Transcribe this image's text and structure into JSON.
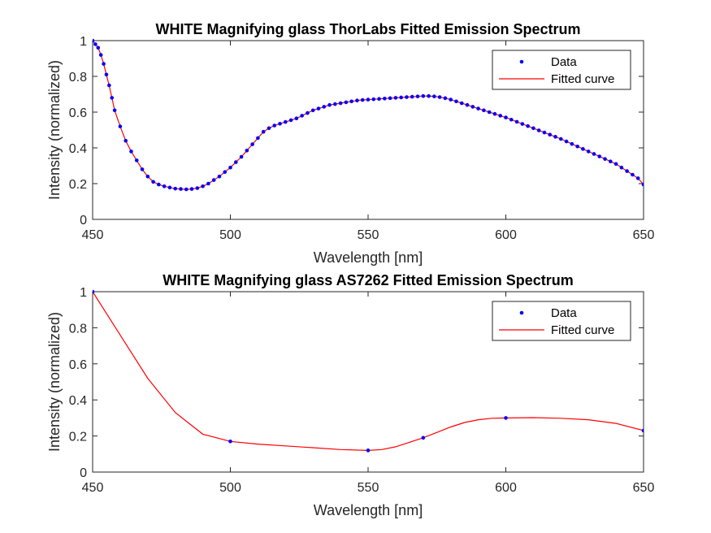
{
  "chart_data": [
    {
      "type": "scatter",
      "title": "WHITE Magnifying glass ThorLabs Fitted Emission Spectrum",
      "xlabel": "Wavelength [nm]",
      "ylabel": "Intensity (normalized)",
      "xlim": [
        450,
        650
      ],
      "ylim": [
        0,
        1
      ],
      "xticks": [
        450,
        500,
        550,
        600,
        650
      ],
      "yticks": [
        0,
        0.2,
        0.4,
        0.6,
        0.8,
        1
      ],
      "grid": false,
      "legend_position": "top-right",
      "series": [
        {
          "name": "Data",
          "style": "markers",
          "color": "#0000FF",
          "x": [
            450,
            451,
            452,
            453,
            454,
            455,
            456,
            457,
            458,
            460,
            462,
            464,
            466,
            468,
            470,
            472,
            474,
            476,
            478,
            480,
            482,
            484,
            486,
            488,
            490,
            492,
            494,
            496,
            498,
            500,
            502,
            504,
            506,
            508,
            510,
            512,
            514,
            516,
            518,
            520,
            522,
            524,
            526,
            528,
            530,
            532,
            534,
            536,
            538,
            540,
            542,
            544,
            546,
            548,
            550,
            552,
            554,
            556,
            558,
            560,
            562,
            564,
            566,
            568,
            570,
            572,
            574,
            576,
            578,
            580,
            582,
            584,
            586,
            588,
            590,
            592,
            594,
            596,
            598,
            600,
            602,
            604,
            606,
            608,
            610,
            612,
            614,
            616,
            618,
            620,
            622,
            624,
            626,
            628,
            630,
            632,
            634,
            636,
            638,
            640,
            642,
            644,
            646,
            648,
            650
          ],
          "y": [
            1.0,
            0.98,
            0.96,
            0.92,
            0.87,
            0.81,
            0.75,
            0.68,
            0.61,
            0.52,
            0.44,
            0.38,
            0.33,
            0.28,
            0.24,
            0.21,
            0.195,
            0.185,
            0.178,
            0.172,
            0.17,
            0.168,
            0.17,
            0.175,
            0.185,
            0.2,
            0.22,
            0.24,
            0.265,
            0.29,
            0.32,
            0.35,
            0.385,
            0.42,
            0.455,
            0.49,
            0.51,
            0.525,
            0.535,
            0.545,
            0.555,
            0.565,
            0.58,
            0.595,
            0.61,
            0.62,
            0.63,
            0.64,
            0.645,
            0.65,
            0.655,
            0.66,
            0.665,
            0.668,
            0.67,
            0.672,
            0.674,
            0.676,
            0.678,
            0.68,
            0.682,
            0.684,
            0.686,
            0.688,
            0.69,
            0.69,
            0.688,
            0.684,
            0.678,
            0.67,
            0.66,
            0.65,
            0.64,
            0.63,
            0.62,
            0.61,
            0.6,
            0.59,
            0.58,
            0.57,
            0.558,
            0.546,
            0.534,
            0.522,
            0.51,
            0.498,
            0.486,
            0.474,
            0.462,
            0.45,
            0.436,
            0.422,
            0.408,
            0.394,
            0.38,
            0.366,
            0.352,
            0.338,
            0.324,
            0.31,
            0.29,
            0.27,
            0.25,
            0.23,
            0.195
          ]
        },
        {
          "name": "Fitted curve",
          "style": "line",
          "color": "#FF0000",
          "x": [
            450,
            451,
            452,
            453,
            454,
            455,
            456,
            457,
            458,
            460,
            462,
            464,
            466,
            468,
            470,
            472,
            474,
            476,
            478,
            480,
            482,
            484,
            486,
            488,
            490,
            492,
            494,
            496,
            498,
            500,
            502,
            504,
            506,
            508,
            510,
            512,
            514,
            516,
            518,
            520,
            522,
            524,
            526,
            528,
            530,
            532,
            534,
            536,
            538,
            540,
            542,
            544,
            546,
            548,
            550,
            552,
            554,
            556,
            558,
            560,
            562,
            564,
            566,
            568,
            570,
            572,
            574,
            576,
            578,
            580,
            582,
            584,
            586,
            588,
            590,
            592,
            594,
            596,
            598,
            600,
            602,
            604,
            606,
            608,
            610,
            612,
            614,
            616,
            618,
            620,
            622,
            624,
            626,
            628,
            630,
            632,
            634,
            636,
            638,
            640,
            642,
            644,
            646,
            648,
            650
          ],
          "y": [
            1.0,
            0.98,
            0.96,
            0.92,
            0.87,
            0.81,
            0.75,
            0.68,
            0.61,
            0.52,
            0.44,
            0.38,
            0.33,
            0.28,
            0.24,
            0.21,
            0.195,
            0.185,
            0.178,
            0.172,
            0.17,
            0.168,
            0.17,
            0.175,
            0.185,
            0.2,
            0.22,
            0.24,
            0.265,
            0.29,
            0.32,
            0.35,
            0.385,
            0.42,
            0.455,
            0.49,
            0.51,
            0.525,
            0.535,
            0.545,
            0.555,
            0.565,
            0.58,
            0.595,
            0.61,
            0.62,
            0.63,
            0.64,
            0.645,
            0.65,
            0.655,
            0.66,
            0.665,
            0.668,
            0.67,
            0.672,
            0.674,
            0.676,
            0.678,
            0.68,
            0.682,
            0.684,
            0.686,
            0.688,
            0.69,
            0.69,
            0.688,
            0.684,
            0.678,
            0.67,
            0.66,
            0.65,
            0.64,
            0.63,
            0.62,
            0.61,
            0.6,
            0.59,
            0.58,
            0.57,
            0.558,
            0.546,
            0.534,
            0.522,
            0.51,
            0.498,
            0.486,
            0.474,
            0.462,
            0.45,
            0.436,
            0.422,
            0.408,
            0.394,
            0.38,
            0.366,
            0.352,
            0.338,
            0.324,
            0.31,
            0.29,
            0.27,
            0.25,
            0.23,
            0.195
          ]
        }
      ]
    },
    {
      "type": "scatter",
      "title": "WHITE Magnifying glass AS7262 Fitted Emission Spectrum",
      "xlabel": "Wavelength [nm]",
      "ylabel": "Intensity (normalized)",
      "xlim": [
        450,
        650
      ],
      "ylim": [
        0,
        1
      ],
      "xticks": [
        450,
        500,
        550,
        600,
        650
      ],
      "yticks": [
        0,
        0.2,
        0.4,
        0.6,
        0.8,
        1
      ],
      "grid": false,
      "legend_position": "top-right",
      "series": [
        {
          "name": "Data",
          "style": "markers",
          "color": "#0000FF",
          "x": [
            450,
            500,
            550,
            570,
            600,
            650
          ],
          "y": [
            1.0,
            0.17,
            0.12,
            0.19,
            0.3,
            0.23
          ]
        },
        {
          "name": "Fitted curve",
          "style": "line",
          "color": "#FF0000",
          "x": [
            450,
            460,
            470,
            480,
            490,
            500,
            510,
            520,
            530,
            540,
            550,
            555,
            560,
            565,
            570,
            575,
            580,
            585,
            590,
            595,
            600,
            610,
            620,
            630,
            640,
            650
          ],
          "y": [
            1.0,
            0.76,
            0.52,
            0.33,
            0.21,
            0.17,
            0.155,
            0.145,
            0.135,
            0.125,
            0.12,
            0.125,
            0.14,
            0.165,
            0.19,
            0.22,
            0.25,
            0.275,
            0.29,
            0.298,
            0.3,
            0.302,
            0.298,
            0.29,
            0.27,
            0.23
          ]
        }
      ]
    }
  ]
}
